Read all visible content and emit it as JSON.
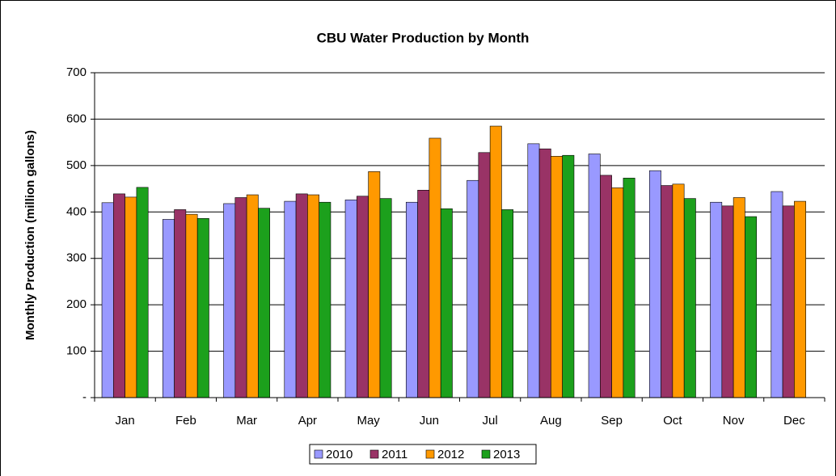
{
  "chart_data": {
    "type": "bar",
    "title": "CBU Water Production by Month",
    "y_label": "Monthly Production (million gallons)",
    "categories": [
      "Jan",
      "Feb",
      "Mar",
      "Apr",
      "May",
      "Jun",
      "Jul",
      "Aug",
      "Sep",
      "Oct",
      "Nov",
      "Dec"
    ],
    "series": [
      {
        "name": "2010",
        "color": "#9999ff",
        "values": [
          420,
          384,
          418,
          423,
          426,
          421,
          468,
          547,
          525,
          489,
          421,
          444
        ]
      },
      {
        "name": "2011",
        "color": "#993366",
        "values": [
          439,
          405,
          431,
          439,
          434,
          447,
          528,
          536,
          479,
          457,
          413,
          413
        ]
      },
      {
        "name": "2012",
        "color": "#ff9900",
        "values": [
          432,
          395,
          437,
          437,
          487,
          559,
          585,
          520,
          452,
          460,
          431,
          423
        ]
      },
      {
        "name": "2013",
        "color": "#1ca01c",
        "values": [
          453,
          386,
          408,
          421,
          429,
          407,
          405,
          522,
          473,
          429,
          390,
          null
        ]
      }
    ],
    "ylim": [
      0,
      700
    ],
    "yticks": [
      {
        "value": 0,
        "label": "-"
      },
      100,
      200,
      300,
      400,
      500,
      600,
      700
    ],
    "grid": true,
    "legend": "bottom"
  }
}
